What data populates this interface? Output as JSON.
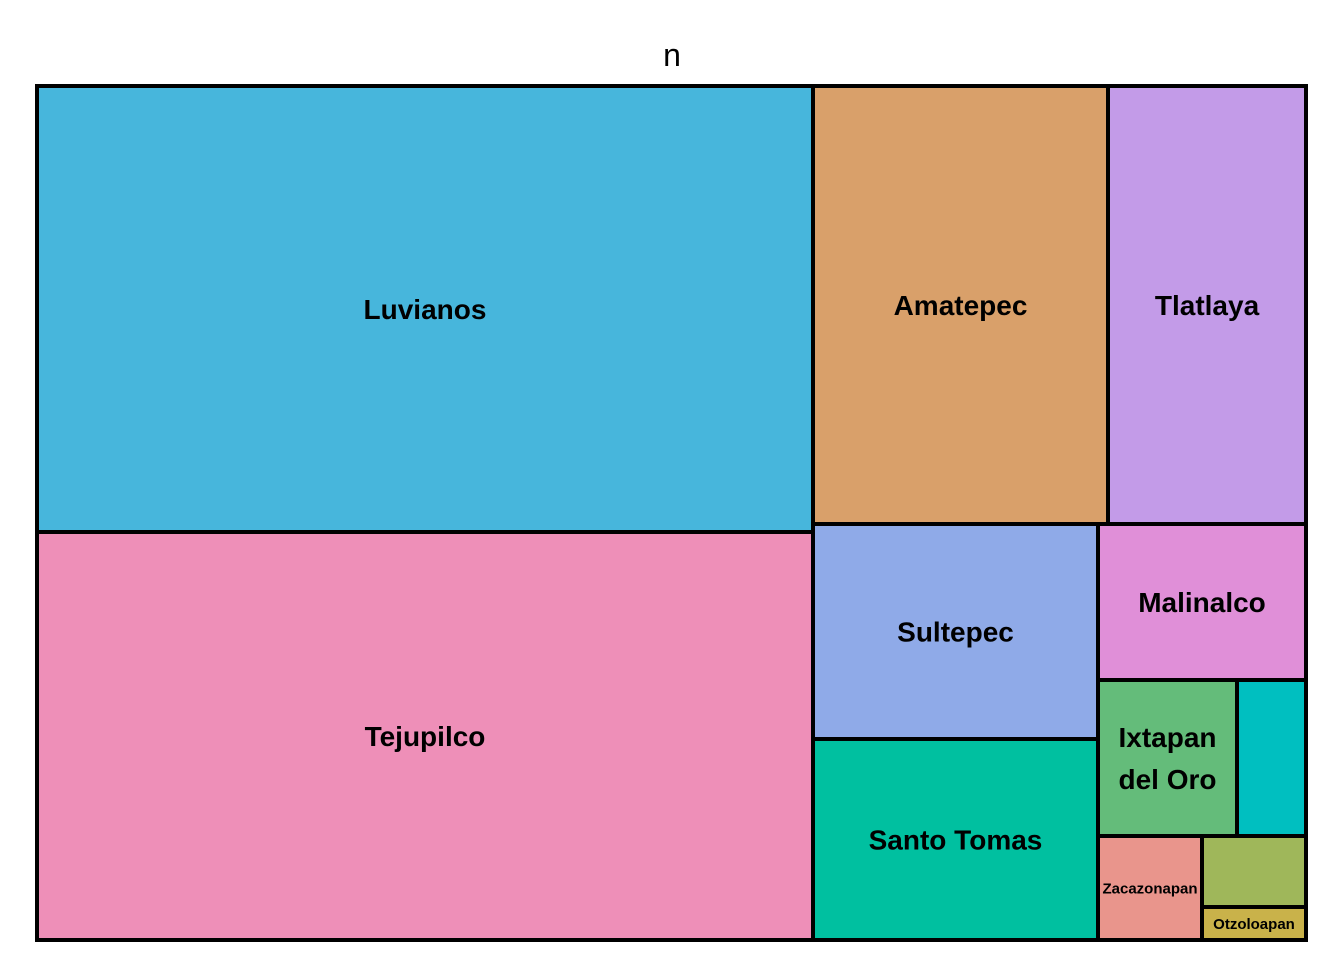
{
  "chart_data": {
    "type": "treemap",
    "title": "n",
    "tiles": [
      {
        "name": "Luvianos",
        "value": 345,
        "color": "#47b6dc",
        "label": "Luvianos",
        "label_lines": [
          "Luvianos"
        ]
      },
      {
        "name": "Tejupilco",
        "value": 318,
        "color": "#ee8fb8",
        "label": "Tejupilco",
        "label_lines": [
          "Tejupilco"
        ]
      },
      {
        "name": "Amatepec",
        "value": 129,
        "color": "#d9a06a",
        "label": "Amatepec",
        "label_lines": [
          "Amatepec"
        ]
      },
      {
        "name": "Tlatlaya",
        "value": 87,
        "color": "#c39be8",
        "label": "Tlatlaya",
        "label_lines": [
          "Tlatlaya"
        ]
      },
      {
        "name": "Sultepec",
        "value": 62,
        "color": "#8faae8",
        "label": "Sultepec",
        "label_lines": [
          "Sultepec"
        ]
      },
      {
        "name": "Santo Tomas",
        "value": 58,
        "color": "#00c0a0",
        "label": "Santo Tomas",
        "label_lines": [
          "Santo Tomas"
        ]
      },
      {
        "name": "Malinalco",
        "value": 32,
        "color": "#e08fd8",
        "label": "Malinalco",
        "label_lines": [
          "Malinalco"
        ]
      },
      {
        "name": "Ixtapan del Oro",
        "value": 21,
        "color": "#64bc7a",
        "label": "Ixtapan del Oro",
        "label_lines": [
          "Ixtapan",
          "del Oro"
        ]
      },
      {
        "name": "unlabeled",
        "value": 10,
        "color": "#00bfc0",
        "label": "",
        "label_lines": []
      },
      {
        "name": "Zacazonapan",
        "value": 10,
        "color": "#e9958c",
        "label": "Zacazonapan",
        "label_lines": [
          "Zacazonapan"
        ]
      },
      {
        "name": "unlabeled-2",
        "value": 7,
        "color": "#9fb75a",
        "label": "",
        "label_lines": []
      },
      {
        "name": "Otzoloapan",
        "value": 3,
        "color": "#c9b24a",
        "label": "Otzoloapan",
        "label_lines": [
          "Otzoloapan"
        ]
      }
    ]
  }
}
